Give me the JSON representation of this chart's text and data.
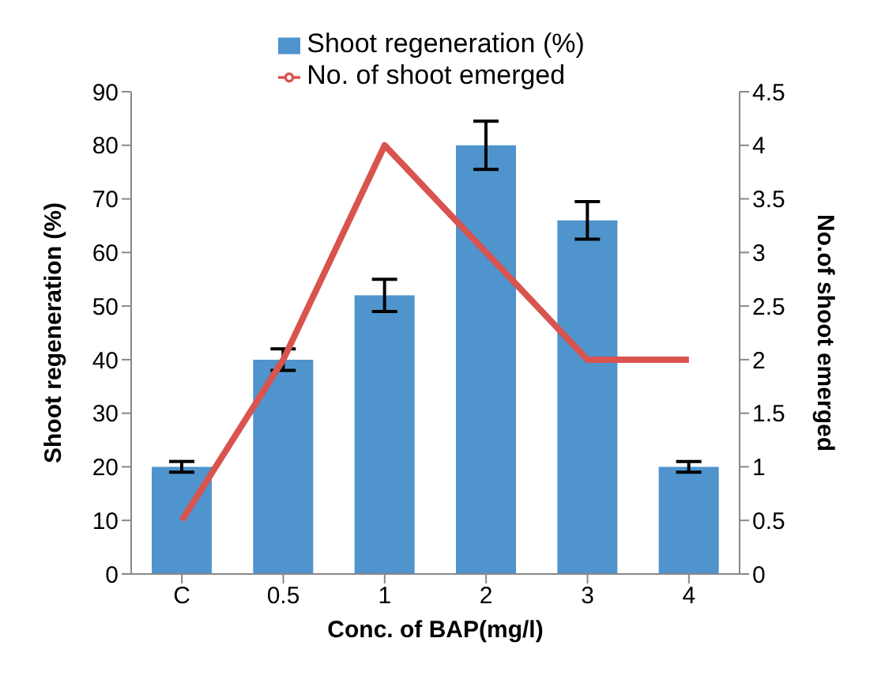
{
  "chart_data": {
    "type": "bar",
    "xlabel": "Conc. of BAP(mg/l)",
    "ylabel": "Shoot regeneration (%)",
    "y2label": "No.of shoot emerged",
    "categories": [
      "C",
      "0.5",
      "1",
      "2",
      "3",
      "4"
    ],
    "series": [
      {
        "name": "Shoot regeneration (%)",
        "color": "#4f94cd",
        "values": [
          20,
          40,
          52,
          80,
          66,
          20
        ],
        "errors": [
          1,
          2,
          3,
          4.5,
          3.5,
          1
        ]
      },
      {
        "name": "No. of shoot emerged",
        "type": "line",
        "axis": "y2",
        "color": "#d9534f",
        "values": [
          0.5,
          2,
          4,
          3,
          2,
          2
        ]
      }
    ],
    "ylim": [
      0,
      90
    ],
    "yticks": [
      0,
      10,
      20,
      30,
      40,
      50,
      60,
      70,
      80,
      90
    ],
    "y2lim": [
      0,
      4.5
    ],
    "y2ticks": [
      0,
      0.5,
      1,
      1.5,
      2,
      2.5,
      3,
      3.5,
      4,
      4.5
    ],
    "grid": false,
    "legend": "top",
    "marker": "none"
  }
}
